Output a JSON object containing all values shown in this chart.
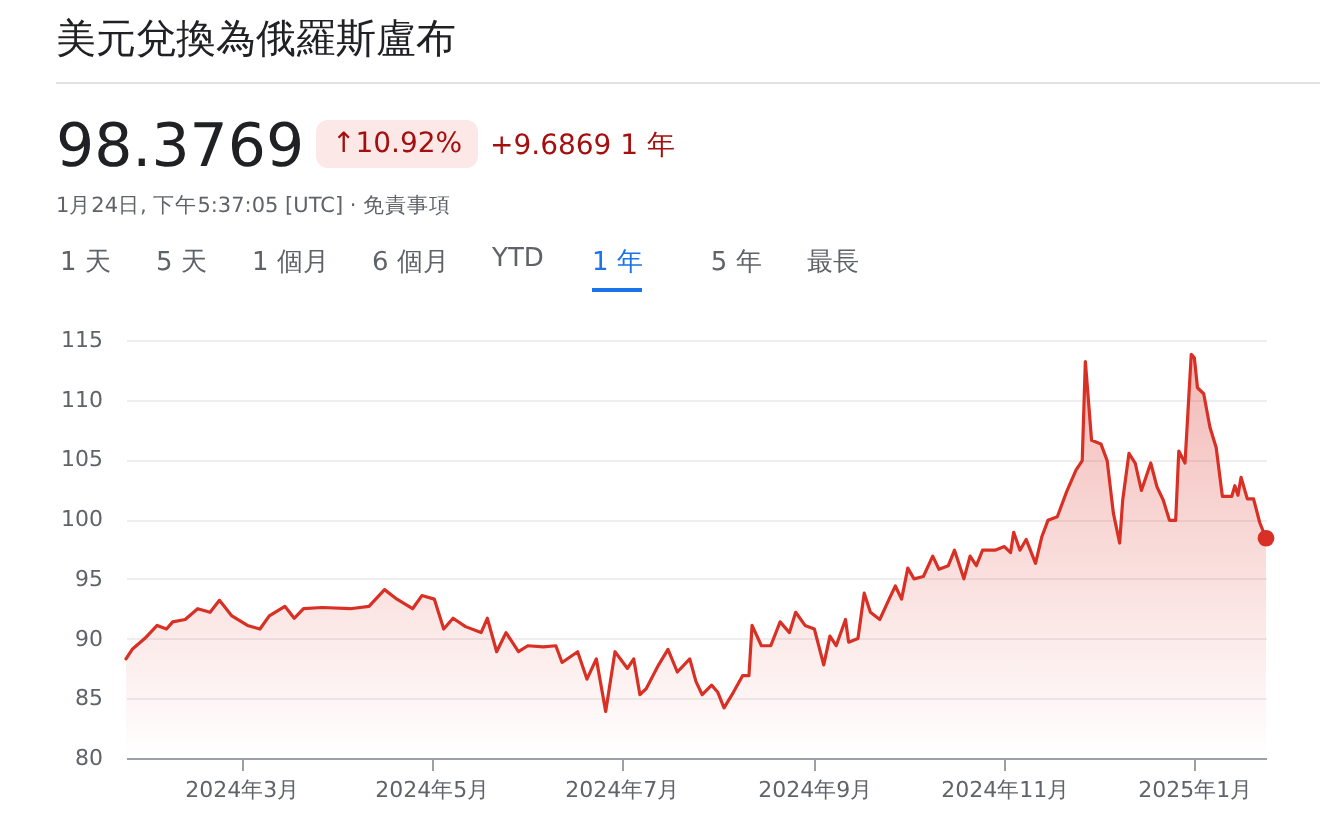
{
  "chart_data": {
    "type": "area",
    "title": "美元兌換為俄羅斯盧布",
    "annotations": [
      "98.3769",
      "↑10.92%",
      "+9.6869 1 年",
      "1月24日, 下午5:37:05 [UTC] · 免責事項",
      "1 天",
      "5 天",
      "1 個月",
      "6 個月",
      "YTD",
      "1 年",
      "5 年",
      "最長"
    ],
    "series": [
      {
        "color": "#d93025",
        "x": [
          "2024-01-24",
          "2024-01-26",
          "2024-01-30",
          "2024-02-03",
          "2024-02-06",
          "2024-02-08",
          "2024-02-12",
          "2024-02-16",
          "2024-02-20",
          "2024-02-23",
          "2024-02-27",
          "2024-03-03",
          "2024-03-07",
          "2024-03-10",
          "2024-03-15",
          "2024-03-18",
          "2024-03-21",
          "2024-03-27",
          "2024-04-05",
          "2024-04-11",
          "2024-04-16",
          "2024-04-20",
          "2024-04-25",
          "2024-04-28",
          "2024-05-02",
          "2024-05-05",
          "2024-05-08",
          "2024-05-12",
          "2024-05-17",
          "2024-05-19",
          "2024-05-22",
          "2024-05-25",
          "2024-05-29",
          "2024-06-01",
          "2024-06-06",
          "2024-06-10",
          "2024-06-12",
          "2024-06-17",
          "2024-06-20",
          "2024-06-23",
          "2024-06-26",
          "2024-06-29",
          "2024-07-03",
          "2024-07-05",
          "2024-07-07",
          "2024-07-09",
          "2024-07-13",
          "2024-07-16",
          "2024-07-19",
          "2024-07-23",
          "2024-07-25",
          "2024-07-27",
          "2024-07-30",
          "2024-08-01",
          "2024-08-03",
          "2024-08-06",
          "2024-08-09",
          "2024-08-11",
          "2024-08-12",
          "2024-08-15",
          "2024-08-18",
          "2024-08-21",
          "2024-08-24",
          "2024-08-26",
          "2024-08-29",
          "2024-09-01",
          "2024-09-04",
          "2024-09-06",
          "2024-09-08",
          "2024-09-11",
          "2024-09-12",
          "2024-09-15",
          "2024-09-17",
          "2024-09-19",
          "2024-09-22",
          "2024-09-25",
          "2024-09-27",
          "2024-09-29",
          "2024-10-01",
          "2024-10-03",
          "2024-10-06",
          "2024-10-09",
          "2024-10-11",
          "2024-10-14",
          "2024-10-16",
          "2024-10-19",
          "2024-10-21",
          "2024-10-23",
          "2024-10-25",
          "2024-10-29",
          "2024-11-01",
          "2024-11-03",
          "2024-11-04",
          "2024-11-06",
          "2024-11-08",
          "2024-11-11",
          "2024-11-13",
          "2024-11-15",
          "2024-11-18",
          "2024-11-21",
          "2024-11-24",
          "2024-11-26",
          "2024-11-27",
          "2024-11-29",
          "2024-12-02",
          "2024-12-04",
          "2024-12-06",
          "2024-12-08",
          "2024-12-09",
          "2024-12-11",
          "2024-12-13",
          "2024-12-15",
          "2024-12-18",
          "2024-12-20",
          "2024-12-22",
          "2024-12-24",
          "2024-12-26",
          "2024-12-27",
          "2024-12-29",
          "2024-12-31",
          "2025-01-01",
          "2025-01-02",
          "2025-01-04",
          "2025-01-06",
          "2025-01-08",
          "2025-01-10",
          "2025-01-13",
          "2025-01-14",
          "2025-01-15",
          "2025-01-16",
          "2025-01-18",
          "2025-01-20",
          "2025-01-22",
          "2025-01-24"
        ],
        "values": [
          88.3,
          89.1,
          90.0,
          91.1,
          90.8,
          91.4,
          91.6,
          92.5,
          92.2,
          93.2,
          91.9,
          91.1,
          90.8,
          91.9,
          92.7,
          91.7,
          92.5,
          92.6,
          92.5,
          92.7,
          94.1,
          93.3,
          92.5,
          93.6,
          93.3,
          90.8,
          91.7,
          91.0,
          90.5,
          91.7,
          88.9,
          90.5,
          88.9,
          89.4,
          89.3,
          89.4,
          88.0,
          88.9,
          86.6,
          88.3,
          83.9,
          88.9,
          87.5,
          88.3,
          85.3,
          85.8,
          87.8,
          89.1,
          87.2,
          88.3,
          86.4,
          85.3,
          86.1,
          85.5,
          84.2,
          85.5,
          86.9,
          86.9,
          91.1,
          89.4,
          89.4,
          91.4,
          90.5,
          92.2,
          91.1,
          90.8,
          87.8,
          90.2,
          89.4,
          91.6,
          89.7,
          90.0,
          93.8,
          92.2,
          91.6,
          93.3,
          94.4,
          93.3,
          95.9,
          95.0,
          95.2,
          96.9,
          95.8,
          96.1,
          97.4,
          95.0,
          96.9,
          96.1,
          97.4,
          97.4,
          97.7,
          97.2,
          98.9,
          97.4,
          98.3,
          96.3,
          98.5,
          99.9,
          100.2,
          102.3,
          104.1,
          104.9,
          113.2,
          106.6,
          106.3,
          104.9,
          100.5,
          98.0,
          101.6,
          105.5,
          104.7,
          102.4,
          104.7,
          102.7,
          101.6,
          99.9,
          99.9,
          105.7,
          104.7,
          113.8,
          113.5,
          111.0,
          110.5,
          107.7,
          106.0,
          101.9,
          101.9,
          102.8,
          102.0,
          103.5,
          101.7,
          101.7,
          99.7,
          98.4
        ]
      },
      {
        "type": "scatter",
        "color": "#d93025",
        "x": [
          "2025-01-24"
        ],
        "values": [
          98.4
        ]
      }
    ],
    "xlim": [
      "2024-01-24",
      "2025-01-24"
    ],
    "xticks": [
      {
        "value": "2024-03-01",
        "label": "2024年3月"
      },
      {
        "value": "2024-05-01",
        "label": "2024年5月"
      },
      {
        "value": "2024-07-01",
        "label": "2024年7月"
      },
      {
        "value": "2024-09-01",
        "label": "2024年9月"
      },
      {
        "value": "2024-11-01",
        "label": "2024年11月"
      },
      {
        "value": "2025-01-01",
        "label": "2025年1月"
      }
    ],
    "ylim": [
      80,
      115
    ],
    "yticks": [
      80,
      85,
      90,
      95,
      100,
      105,
      110,
      115
    ],
    "grid": "y"
  }
}
